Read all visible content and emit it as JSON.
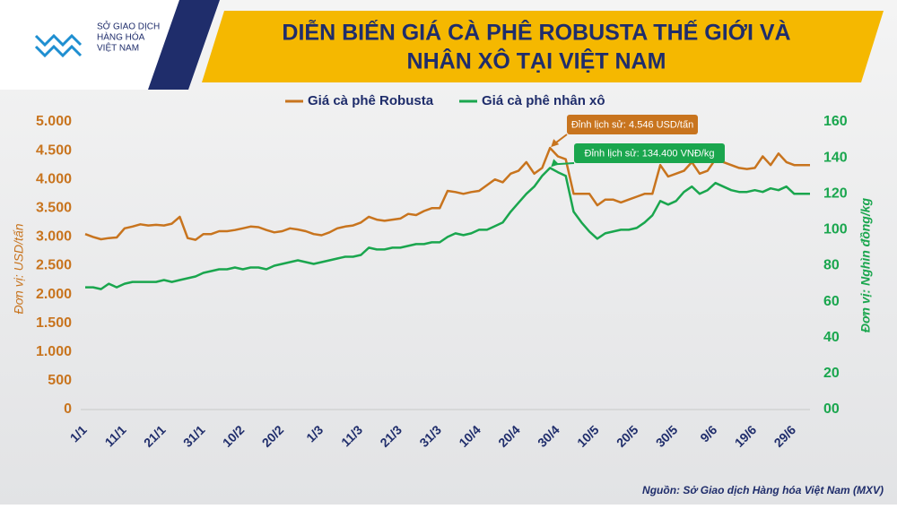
{
  "logo": [
    "SỞ GIAO DỊCH",
    "HÀNG HÓA",
    "VIỆT NAM"
  ],
  "chart_data": {
    "type": "line",
    "title": [
      "DIỄN BIẾN GIÁ CÀ PHÊ ROBUSTA THẾ GIỚI VÀ",
      "NHÂN XÔ TẠI VIỆT NAM"
    ],
    "y_label": "Đơn vị: USD/tấn",
    "y2_label": "Đơn vị: Nghìn đồng/kg",
    "source": "Nguồn: Sở Giao dịch Hàng hóa Việt Nam (MXV)",
    "annotations": [
      "Đỉnh lịch sử: 4.546 USD/tấn",
      "Đỉnh lịch sử: 134.400 VNĐ/kg"
    ],
    "categories": [
      "1/1",
      null,
      null,
      null,
      null,
      "11/1",
      null,
      null,
      null,
      null,
      "21/1",
      null,
      null,
      null,
      null,
      "31/1",
      null,
      null,
      null,
      null,
      "10/2",
      null,
      null,
      null,
      null,
      "20/2",
      null,
      null,
      null,
      null,
      "1/3",
      null,
      null,
      null,
      null,
      "11/3",
      null,
      null,
      null,
      null,
      "21/3",
      null,
      null,
      null,
      null,
      "31/3",
      null,
      null,
      null,
      null,
      "10/4",
      null,
      null,
      null,
      null,
      "20/4",
      null,
      null,
      null,
      null,
      "30/4",
      null,
      null,
      null,
      null,
      "10/5",
      null,
      null,
      null,
      null,
      "20/5",
      null,
      null,
      null,
      null,
      "30/5",
      null,
      null,
      null,
      null,
      "9/6",
      null,
      null,
      null,
      null,
      "19/6",
      null,
      null,
      null,
      null,
      "29/6",
      null,
      null
    ],
    "series": [
      {
        "name": "Giá cà phê Robusta",
        "color": "#c8741e",
        "values": [
          3050,
          3000,
          2960,
          2980,
          2990,
          3150,
          3180,
          3220,
          3200,
          3210,
          3200,
          3230,
          3350,
          2980,
          2950,
          3050,
          3050,
          3100,
          3100,
          3120,
          3150,
          3180,
          3170,
          3120,
          3080,
          3100,
          3150,
          3130,
          3100,
          3050,
          3030,
          3080,
          3150,
          3180,
          3200,
          3250,
          3350,
          3300,
          3280,
          3300,
          3320,
          3400,
          3380,
          3450,
          3500,
          3500,
          3800,
          3780,
          3750,
          3780,
          3800,
          3900,
          4000,
          3950,
          4100,
          4150,
          4300,
          4100,
          4200,
          4546,
          4400,
          4350,
          3750,
          3750,
          3750,
          3550,
          3650,
          3650,
          3600,
          3650,
          3700,
          3750,
          3750,
          4250,
          4050,
          4100,
          4150,
          4300,
          4100,
          4150,
          4350,
          4300,
          4250,
          4200,
          4180,
          4200,
          4400,
          4250,
          4450,
          4300,
          4250,
          4250,
          4250
        ]
      },
      {
        "name": "Giá cà phê nhân xô",
        "color": "#1aa64e",
        "axis": "y2",
        "values": [
          68,
          68,
          67,
          70,
          68,
          70,
          71,
          71,
          71,
          71,
          72,
          71,
          72,
          73,
          74,
          76,
          77,
          78,
          78,
          79,
          78,
          79,
          79,
          78,
          80,
          81,
          82,
          83,
          82,
          81,
          82,
          83,
          84,
          85,
          85,
          86,
          90,
          89,
          89,
          90,
          90,
          91,
          92,
          92,
          93,
          93,
          96,
          98,
          97,
          98,
          100,
          100,
          102,
          104,
          110,
          115,
          120,
          124,
          130,
          134.4,
          132,
          130,
          110,
          104,
          99,
          95,
          98,
          99,
          100,
          100,
          101,
          104,
          108,
          116,
          114,
          116,
          121,
          124,
          120,
          122,
          126,
          124,
          122,
          121,
          121,
          122,
          121,
          123,
          122,
          124,
          120,
          120,
          120
        ]
      }
    ],
    "ylim": [
      0,
      5000
    ],
    "yticks": [
      0,
      500,
      {
        "value": 1000,
        "label": "1.000"
      },
      {
        "value": 1500,
        "label": "1.500"
      },
      {
        "value": 2000,
        "label": "2.000"
      },
      {
        "value": 2500,
        "label": "2.500"
      },
      {
        "value": 3000,
        "label": "3.000"
      },
      {
        "value": 3500,
        "label": "3.500"
      },
      {
        "value": 4000,
        "label": "4.000"
      },
      {
        "value": 4500,
        "label": "4.500"
      },
      {
        "value": 5000,
        "label": "5.000"
      }
    ],
    "y2lim": [
      0,
      160
    ],
    "y2ticks": [
      {
        "value": 0,
        "label": "00"
      },
      20,
      40,
      60,
      80,
      100,
      120,
      140,
      160
    ],
    "grid": false,
    "legend": "top"
  }
}
